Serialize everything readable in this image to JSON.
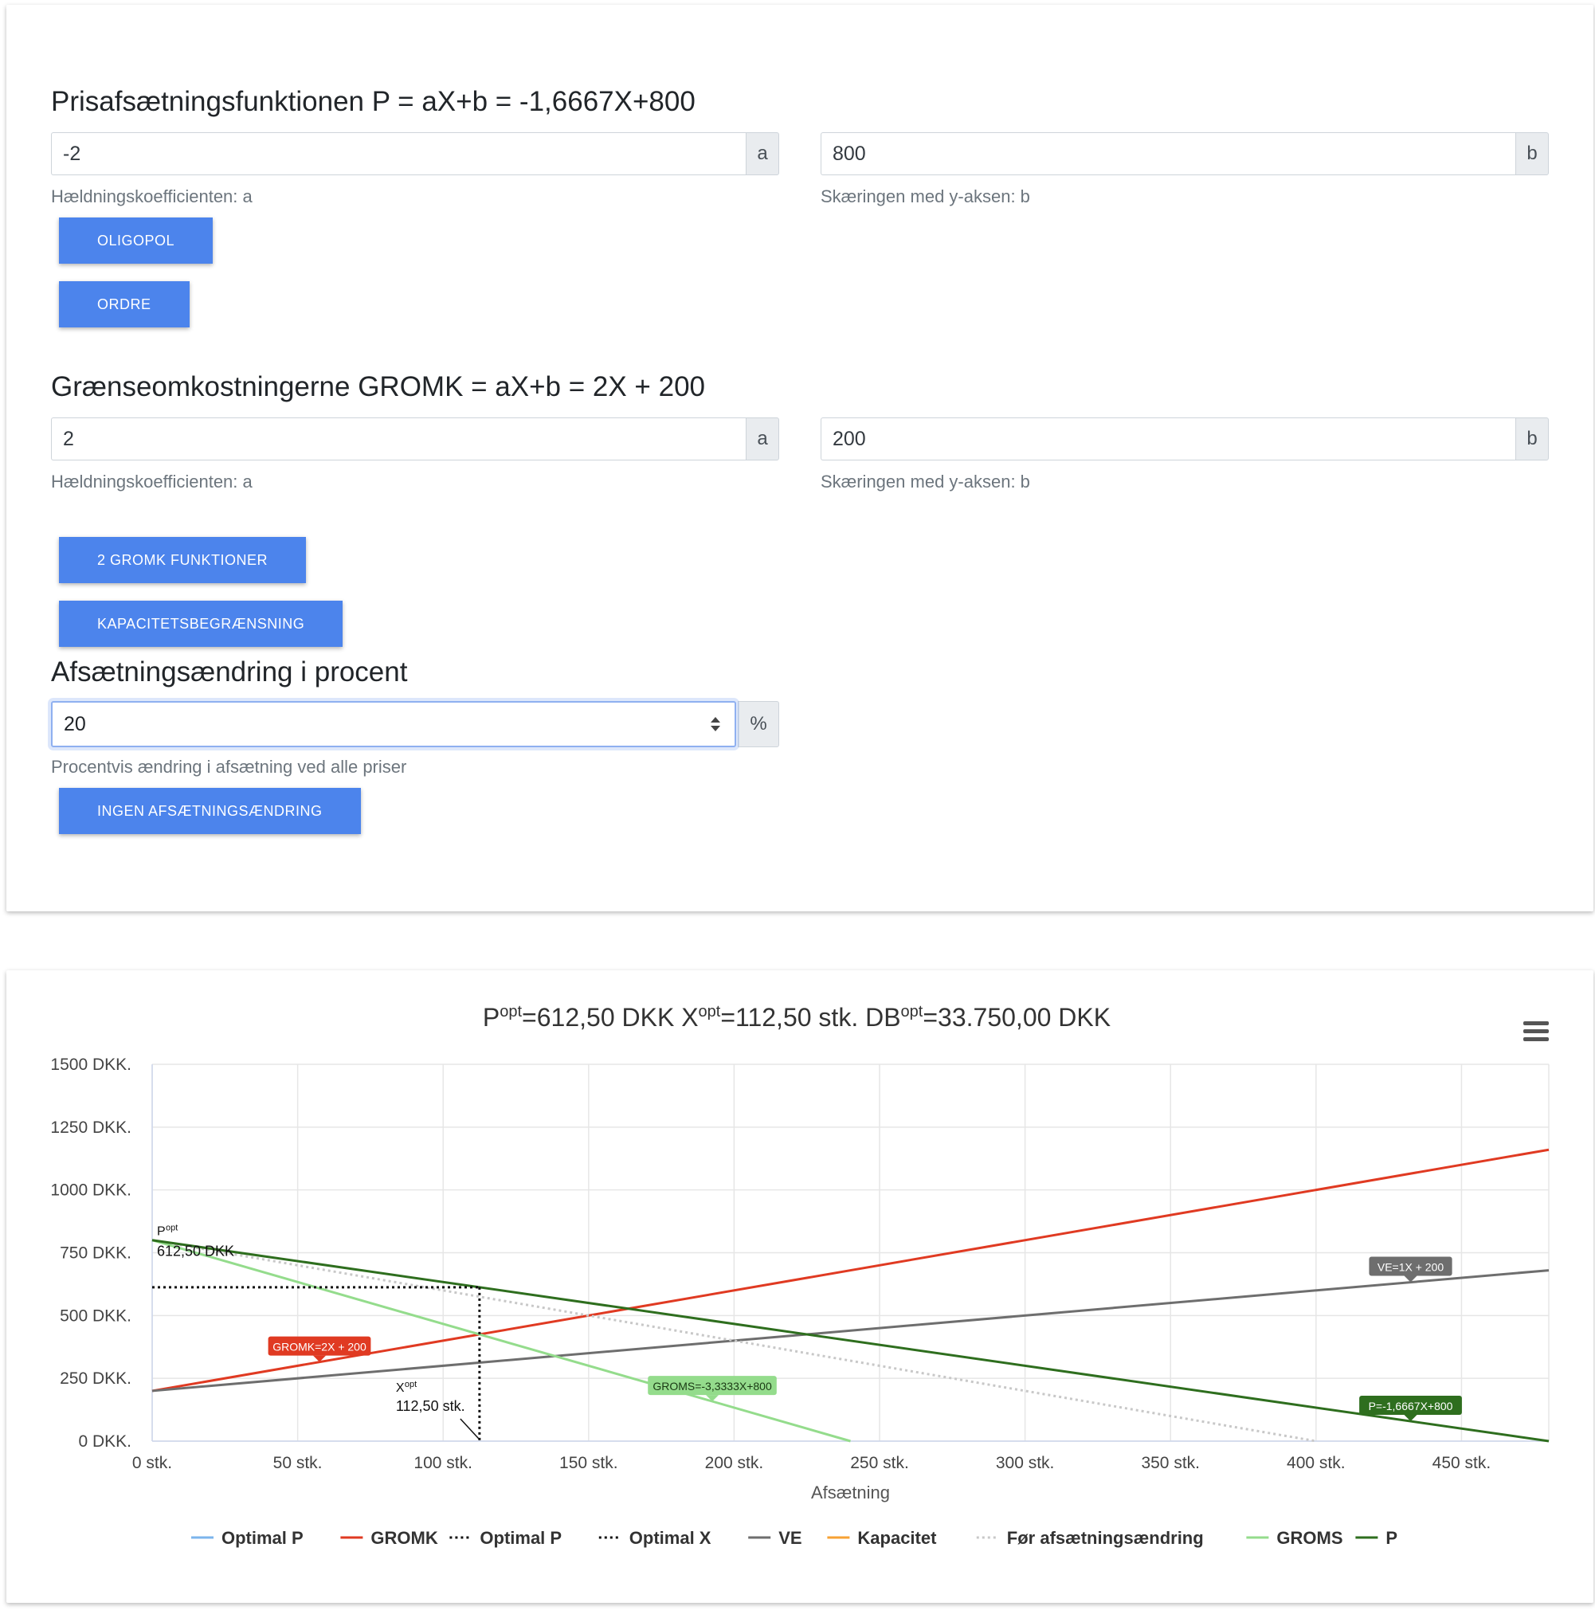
{
  "pricing": {
    "heading": "Prisafsætningsfunktionen P = aX+b = -1,6667X+800",
    "a_value": "-2",
    "a_addon": "a",
    "a_help": "Hældningskoefficienten: a",
    "b_value": "800",
    "b_addon": "b",
    "b_help": "Skæringen med y-aksen: b",
    "buttons": [
      "OLIGOPOL",
      "ORDRE"
    ]
  },
  "cost": {
    "heading": "Grænseomkostningerne GROMK = aX+b = 2X + 200",
    "a_value": "2",
    "a_addon": "a",
    "a_help": "Hældningskoefficienten: a",
    "b_value": "200",
    "b_addon": "b",
    "b_help": "Skæringen med y-aksen: b",
    "buttons": [
      "2 GROMK FUNKTIONER",
      "KAPACITETSBEGRÆNSNING"
    ]
  },
  "sales_change": {
    "heading": "Afsætningsændring i procent",
    "value": "20",
    "addon": "%",
    "help": "Procentvis ændring i afsætning ved alle priser",
    "button": "INGEN AFSÆTNINGSÆNDRING"
  },
  "chart_data": {
    "type": "line",
    "title": {
      "p_sym": "P",
      "p_sup": "opt",
      "p_val": "=612,50 DKK ",
      "x_sym": "X",
      "x_sup": "opt",
      "x_val": "=112,50 stk. ",
      "db_sym": "DB",
      "db_sup": "opt",
      "db_val": "=33.750,00 DKK"
    },
    "xlabel": "Afsætning",
    "xlim": [
      0,
      480
    ],
    "ylim": [
      0,
      1500
    ],
    "x_ticks": [
      0,
      50,
      100,
      150,
      200,
      250,
      300,
      350,
      400,
      450
    ],
    "x_tick_labels": [
      "0 stk.",
      "50 stk.",
      "100 stk.",
      "150 stk.",
      "200 stk.",
      "250 stk.",
      "300 stk.",
      "350 stk.",
      "400 stk.",
      "450 stk."
    ],
    "y_ticks": [
      0,
      250,
      500,
      750,
      1000,
      1250,
      1500
    ],
    "y_tick_labels": [
      "0 DKK.",
      "250 DKK.",
      "500 DKK.",
      "750 DKK.",
      "1000 DKK.",
      "1250 DKK.",
      "1500 DKK."
    ],
    "grid": true,
    "legend_position": "bottom",
    "series": [
      {
        "name": "GROMK",
        "color": "#e03a22",
        "dash": "solid",
        "points": [
          [
            0,
            200
          ],
          [
            480,
            1160
          ]
        ]
      },
      {
        "name": "VE",
        "color": "#6e6e6e",
        "dash": "solid",
        "points": [
          [
            0,
            200
          ],
          [
            480,
            680
          ]
        ]
      },
      {
        "name": "Før afsætningsændring",
        "color": "#c8c8c8",
        "dash": "dotted",
        "points": [
          [
            0,
            800
          ],
          [
            400,
            0
          ]
        ]
      },
      {
        "name": "GROMS",
        "color": "#94dc8c",
        "dash": "solid",
        "points": [
          [
            0,
            800
          ],
          [
            240,
            0
          ]
        ]
      },
      {
        "name": "P",
        "color": "#2e6e1e",
        "dash": "solid",
        "points": [
          [
            0,
            800
          ],
          [
            480,
            0
          ]
        ]
      },
      {
        "name": "Optimal P",
        "color": "#111111",
        "dash": "dotted",
        "points": [
          [
            0,
            612.5
          ],
          [
            112.5,
            612.5
          ]
        ]
      },
      {
        "name": "Optimal X",
        "color": "#111111",
        "dash": "dotted",
        "points": [
          [
            112.5,
            612.5
          ],
          [
            112.5,
            0
          ]
        ]
      }
    ],
    "annotations": [
      {
        "text": "GROMK=2X + 200",
        "x": 57.5,
        "y": 315,
        "color": "#e03a22",
        "text_color": "#ffffff"
      },
      {
        "text": "VE=1X + 200",
        "x": 432.5,
        "y": 632.5,
        "color": "#6e6e6e",
        "text_color": "#ffffff"
      },
      {
        "text": "GROMS=-3,3333X+800",
        "x": 192.5,
        "y": 158.33,
        "color": "#94dc8c",
        "text_color": "#1a3a14"
      },
      {
        "text": "P=-1,6667X+800",
        "x": 432.5,
        "y": 79.17,
        "color": "#2e6e1e",
        "text_color": "#ffffff"
      }
    ],
    "popt_label": {
      "sym": "P",
      "sup": "opt",
      "value": "612,50 DKK"
    },
    "xopt_label": {
      "sym": "X",
      "sup": "opt",
      "value": "112,50 stk."
    },
    "legend": [
      {
        "name": "Optimal P",
        "color": "#7cb5ec",
        "style": "solid"
      },
      {
        "name": "GROMK",
        "color": "#e03a22",
        "style": "solid"
      },
      {
        "name": "Optimal P",
        "color": "#111111",
        "style": "dotted"
      },
      {
        "name": "Optimal X",
        "color": "#111111",
        "style": "dotted"
      },
      {
        "name": "VE",
        "color": "#6e6e6e",
        "style": "solid"
      },
      {
        "name": "Kapacitet",
        "color": "#f7a233",
        "style": "solid"
      },
      {
        "name": "Før afsætningsændring",
        "color": "#c8c8c8",
        "style": "dotted"
      },
      {
        "name": "GROMS",
        "color": "#94dc8c",
        "style": "solid"
      },
      {
        "name": "P",
        "color": "#2e6e1e",
        "style": "solid"
      }
    ]
  }
}
